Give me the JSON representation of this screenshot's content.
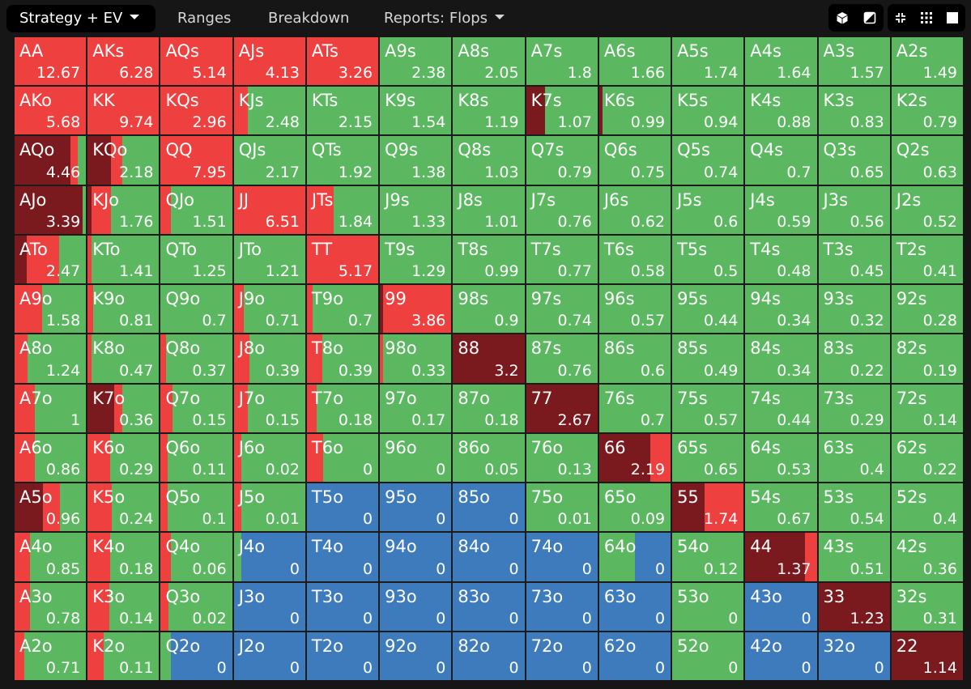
{
  "tabs": [
    {
      "label": "Strategy + EV",
      "active": true,
      "caret": true
    },
    {
      "label": "Ranges",
      "active": false,
      "caret": false
    },
    {
      "label": "Breakdown",
      "active": false,
      "caret": false
    },
    {
      "label": "Reports: Flops",
      "active": false,
      "caret": true
    }
  ],
  "toolbar_icons": [
    "cube-icon",
    "contrast-icon",
    "collapse-icon",
    "grid-dots-icon",
    "square-icon"
  ],
  "colors": {
    "raise": "#ef4040",
    "allin": "#7a1a1e",
    "call": "#5bb760",
    "fold": "#3d7bbc"
  },
  "hands": [
    [
      {
        "h": "AA",
        "v": "12.67",
        "mix": {
          "raise": 1
        }
      },
      {
        "h": "AKs",
        "v": "6.28",
        "mix": {
          "raise": 1
        }
      },
      {
        "h": "AQs",
        "v": "5.14",
        "mix": {
          "raise": 1
        }
      },
      {
        "h": "AJs",
        "v": "4.13",
        "mix": {
          "raise": 1
        }
      },
      {
        "h": "ATs",
        "v": "3.26",
        "mix": {
          "raise": 1
        }
      },
      {
        "h": "A9s",
        "v": "2.38",
        "mix": {
          "call": 1
        }
      },
      {
        "h": "A8s",
        "v": "2.05",
        "mix": {
          "call": 1
        }
      },
      {
        "h": "A7s",
        "v": "1.8",
        "mix": {
          "call": 1
        }
      },
      {
        "h": "A6s",
        "v": "1.66",
        "mix": {
          "call": 1
        }
      },
      {
        "h": "A5s",
        "v": "1.74",
        "mix": {
          "call": 1
        }
      },
      {
        "h": "A4s",
        "v": "1.64",
        "mix": {
          "call": 1
        }
      },
      {
        "h": "A3s",
        "v": "1.57",
        "mix": {
          "call": 1
        }
      },
      {
        "h": "A2s",
        "v": "1.49",
        "mix": {
          "call": 1
        }
      }
    ],
    [
      {
        "h": "AKo",
        "v": "5.68",
        "mix": {
          "raise": 1
        }
      },
      {
        "h": "KK",
        "v": "9.74",
        "mix": {
          "raise": 1
        }
      },
      {
        "h": "KQs",
        "v": "2.96",
        "mix": {
          "raise": 1
        }
      },
      {
        "h": "KJs",
        "v": "2.48",
        "mix": {
          "raise": 0.2,
          "call": 0.8
        }
      },
      {
        "h": "KTs",
        "v": "2.15",
        "mix": {
          "call": 1
        }
      },
      {
        "h": "K9s",
        "v": "1.54",
        "mix": {
          "call": 1
        }
      },
      {
        "h": "K8s",
        "v": "1.19",
        "mix": {
          "call": 1
        }
      },
      {
        "h": "K7s",
        "v": "1.07",
        "mix": {
          "allin": 0.27,
          "call": 0.73
        }
      },
      {
        "h": "K6s",
        "v": "0.99",
        "mix": {
          "allin": 0.05,
          "call": 0.95
        }
      },
      {
        "h": "K5s",
        "v": "0.94",
        "mix": {
          "call": 1
        }
      },
      {
        "h": "K4s",
        "v": "0.88",
        "mix": {
          "call": 1
        }
      },
      {
        "h": "K3s",
        "v": "0.83",
        "mix": {
          "call": 1
        }
      },
      {
        "h": "K2s",
        "v": "0.79",
        "mix": {
          "call": 1
        }
      }
    ],
    [
      {
        "h": "AQo",
        "v": "4.46",
        "mix": {
          "allin": 0.78,
          "raise": 0.1,
          "call": 0.12
        }
      },
      {
        "h": "KQo",
        "v": "2.18",
        "mix": {
          "allin": 0.33,
          "raise": 0.15,
          "call": 0.52
        }
      },
      {
        "h": "QQ",
        "v": "7.95",
        "mix": {
          "raise": 1
        }
      },
      {
        "h": "QJs",
        "v": "2.17",
        "mix": {
          "call": 1
        }
      },
      {
        "h": "QTs",
        "v": "1.92",
        "mix": {
          "call": 1
        }
      },
      {
        "h": "Q9s",
        "v": "1.38",
        "mix": {
          "call": 1
        }
      },
      {
        "h": "Q8s",
        "v": "1.03",
        "mix": {
          "call": 1
        }
      },
      {
        "h": "Q7s",
        "v": "0.79",
        "mix": {
          "call": 1
        }
      },
      {
        "h": "Q6s",
        "v": "0.75",
        "mix": {
          "call": 1
        }
      },
      {
        "h": "Q5s",
        "v": "0.74",
        "mix": {
          "call": 1
        }
      },
      {
        "h": "Q4s",
        "v": "0.7",
        "mix": {
          "call": 1
        }
      },
      {
        "h": "Q3s",
        "v": "0.65",
        "mix": {
          "call": 1
        }
      },
      {
        "h": "Q2s",
        "v": "0.63",
        "mix": {
          "call": 1
        }
      }
    ],
    [
      {
        "h": "AJo",
        "v": "3.39",
        "mix": {
          "allin": 0.95,
          "call": 0.05
        }
      },
      {
        "h": "KJo",
        "v": "1.76",
        "mix": {
          "allin": 0.05,
          "raise": 0.28,
          "call": 0.67
        }
      },
      {
        "h": "QJo",
        "v": "1.51",
        "mix": {
          "raise": 0.14,
          "call": 0.86
        }
      },
      {
        "h": "JJ",
        "v": "6.51",
        "mix": {
          "raise": 1
        }
      },
      {
        "h": "JTs",
        "v": "1.84",
        "mix": {
          "raise": 0.38,
          "call": 0.62
        }
      },
      {
        "h": "J9s",
        "v": "1.33",
        "mix": {
          "call": 1
        }
      },
      {
        "h": "J8s",
        "v": "1.01",
        "mix": {
          "call": 1
        }
      },
      {
        "h": "J7s",
        "v": "0.76",
        "mix": {
          "call": 1
        }
      },
      {
        "h": "J6s",
        "v": "0.62",
        "mix": {
          "call": 1
        }
      },
      {
        "h": "J5s",
        "v": "0.6",
        "mix": {
          "call": 1
        }
      },
      {
        "h": "J4s",
        "v": "0.59",
        "mix": {
          "call": 1
        }
      },
      {
        "h": "J3s",
        "v": "0.56",
        "mix": {
          "call": 1
        }
      },
      {
        "h": "J2s",
        "v": "0.52",
        "mix": {
          "call": 1
        }
      }
    ],
    [
      {
        "h": "ATo",
        "v": "2.47",
        "mix": {
          "allin": 0.17,
          "raise": 0.45,
          "call": 0.38
        }
      },
      {
        "h": "KTo",
        "v": "1.41",
        "mix": {
          "raise": 0.05,
          "call": 0.95
        }
      },
      {
        "h": "QTo",
        "v": "1.25",
        "mix": {
          "call": 1
        }
      },
      {
        "h": "JTo",
        "v": "1.21",
        "mix": {
          "call": 1
        }
      },
      {
        "h": "TT",
        "v": "5.17",
        "mix": {
          "raise": 1
        }
      },
      {
        "h": "T9s",
        "v": "1.29",
        "mix": {
          "call": 1
        }
      },
      {
        "h": "T8s",
        "v": "0.99",
        "mix": {
          "call": 1
        }
      },
      {
        "h": "T7s",
        "v": "0.77",
        "mix": {
          "call": 1
        }
      },
      {
        "h": "T6s",
        "v": "0.58",
        "mix": {
          "call": 1
        }
      },
      {
        "h": "T5s",
        "v": "0.5",
        "mix": {
          "call": 1
        }
      },
      {
        "h": "T4s",
        "v": "0.48",
        "mix": {
          "call": 1
        }
      },
      {
        "h": "T3s",
        "v": "0.45",
        "mix": {
          "call": 1
        }
      },
      {
        "h": "T2s",
        "v": "0.41",
        "mix": {
          "call": 1
        }
      }
    ],
    [
      {
        "h": "A9o",
        "v": "1.58",
        "mix": {
          "raise": 0.38,
          "call": 0.62
        }
      },
      {
        "h": "K9o",
        "v": "0.81",
        "mix": {
          "raise": 0.08,
          "call": 0.92
        }
      },
      {
        "h": "Q9o",
        "v": "0.7",
        "mix": {
          "call": 1
        }
      },
      {
        "h": "J9o",
        "v": "0.71",
        "mix": {
          "raise": 0.14,
          "call": 0.86
        }
      },
      {
        "h": "T9o",
        "v": "0.7",
        "mix": {
          "raise": 0.08,
          "call": 0.92
        }
      },
      {
        "h": "99",
        "v": "3.86",
        "mix": {
          "allin": 0.04,
          "raise": 0.96
        }
      },
      {
        "h": "98s",
        "v": "0.9",
        "mix": {
          "call": 1
        }
      },
      {
        "h": "97s",
        "v": "0.74",
        "mix": {
          "call": 1
        }
      },
      {
        "h": "96s",
        "v": "0.57",
        "mix": {
          "call": 1
        }
      },
      {
        "h": "95s",
        "v": "0.44",
        "mix": {
          "call": 1
        }
      },
      {
        "h": "94s",
        "v": "0.34",
        "mix": {
          "call": 1
        }
      },
      {
        "h": "93s",
        "v": "0.32",
        "mix": {
          "call": 1
        }
      },
      {
        "h": "92s",
        "v": "0.28",
        "mix": {
          "call": 1
        }
      }
    ],
    [
      {
        "h": "A8o",
        "v": "1.24",
        "mix": {
          "raise": 0.18,
          "call": 0.82
        }
      },
      {
        "h": "K8o",
        "v": "0.47",
        "mix": {
          "raise": 0.05,
          "call": 0.95
        }
      },
      {
        "h": "Q8o",
        "v": "0.37",
        "mix": {
          "raise": 0.07,
          "call": 0.93
        }
      },
      {
        "h": "J8o",
        "v": "0.39",
        "mix": {
          "raise": 0.22,
          "call": 0.78
        }
      },
      {
        "h": "T8o",
        "v": "0.39",
        "mix": {
          "raise": 0.22,
          "call": 0.78
        }
      },
      {
        "h": "98o",
        "v": "0.33",
        "mix": {
          "raise": 0.04,
          "call": 0.96
        }
      },
      {
        "h": "88",
        "v": "3.2",
        "mix": {
          "allin": 1
        }
      },
      {
        "h": "87s",
        "v": "0.76",
        "mix": {
          "call": 1
        }
      },
      {
        "h": "86s",
        "v": "0.6",
        "mix": {
          "call": 1
        }
      },
      {
        "h": "85s",
        "v": "0.49",
        "mix": {
          "call": 1
        }
      },
      {
        "h": "84s",
        "v": "0.34",
        "mix": {
          "call": 1
        }
      },
      {
        "h": "83s",
        "v": "0.22",
        "mix": {
          "call": 1
        }
      },
      {
        "h": "82s",
        "v": "0.19",
        "mix": {
          "call": 1
        }
      }
    ],
    [
      {
        "h": "A7o",
        "v": "1",
        "mix": {
          "raise": 0.28,
          "call": 0.72
        }
      },
      {
        "h": "K7o",
        "v": "0.36",
        "mix": {
          "allin": 0.37,
          "raise": 0.12,
          "call": 0.51
        }
      },
      {
        "h": "Q7o",
        "v": "0.15",
        "mix": {
          "raise": 0.17,
          "call": 0.83
        }
      },
      {
        "h": "J7o",
        "v": "0.15",
        "mix": {
          "raise": 0.2,
          "call": 0.8
        }
      },
      {
        "h": "T7o",
        "v": "0.18",
        "mix": {
          "raise": 0.14,
          "call": 0.86
        }
      },
      {
        "h": "97o",
        "v": "0.17",
        "mix": {
          "call": 1
        }
      },
      {
        "h": "87o",
        "v": "0.18",
        "mix": {
          "call": 1
        }
      },
      {
        "h": "77",
        "v": "2.67",
        "mix": {
          "allin": 1
        }
      },
      {
        "h": "76s",
        "v": "0.7",
        "mix": {
          "call": 1
        }
      },
      {
        "h": "75s",
        "v": "0.57",
        "mix": {
          "call": 1
        }
      },
      {
        "h": "74s",
        "v": "0.44",
        "mix": {
          "call": 1
        }
      },
      {
        "h": "73s",
        "v": "0.29",
        "mix": {
          "call": 1
        }
      },
      {
        "h": "72s",
        "v": "0.14",
        "mix": {
          "call": 1
        }
      }
    ],
    [
      {
        "h": "A6o",
        "v": "0.86",
        "mix": {
          "raise": 0.28,
          "call": 0.72
        }
      },
      {
        "h": "K6o",
        "v": "0.29",
        "mix": {
          "raise": 0.31,
          "call": 0.69
        }
      },
      {
        "h": "Q6o",
        "v": "0.11",
        "mix": {
          "raise": 0.1,
          "call": 0.9
        }
      },
      {
        "h": "J6o",
        "v": "0.02",
        "mix": {
          "raise": 0.1,
          "call": 0.9
        }
      },
      {
        "h": "T6o",
        "v": "0",
        "mix": {
          "raise": 0.23,
          "call": 0.77
        }
      },
      {
        "h": "96o",
        "v": "0",
        "mix": {
          "call": 1
        }
      },
      {
        "h": "86o",
        "v": "0.05",
        "mix": {
          "call": 1
        }
      },
      {
        "h": "76o",
        "v": "0.13",
        "mix": {
          "call": 1
        }
      },
      {
        "h": "66",
        "v": "2.19",
        "mix": {
          "allin": 0.72,
          "raise": 0.28
        }
      },
      {
        "h": "65s",
        "v": "0.65",
        "mix": {
          "call": 1
        }
      },
      {
        "h": "64s",
        "v": "0.53",
        "mix": {
          "call": 1
        }
      },
      {
        "h": "63s",
        "v": "0.4",
        "mix": {
          "call": 1
        }
      },
      {
        "h": "62s",
        "v": "0.22",
        "mix": {
          "call": 1
        }
      }
    ],
    [
      {
        "h": "A5o",
        "v": "0.96",
        "mix": {
          "allin": 0.4,
          "raise": 0.23,
          "call": 0.37
        }
      },
      {
        "h": "K5o",
        "v": "0.24",
        "mix": {
          "raise": 0.34,
          "call": 0.66
        }
      },
      {
        "h": "Q5o",
        "v": "0.1",
        "mix": {
          "raise": 0.1,
          "call": 0.9
        }
      },
      {
        "h": "J5o",
        "v": "0.01",
        "mix": {
          "raise": 0.1,
          "call": 0.9
        }
      },
      {
        "h": "T5o",
        "v": "0",
        "mix": {
          "fold": 1
        }
      },
      {
        "h": "95o",
        "v": "0",
        "mix": {
          "fold": 1
        }
      },
      {
        "h": "85o",
        "v": "0",
        "mix": {
          "fold": 1
        }
      },
      {
        "h": "75o",
        "v": "0.01",
        "mix": {
          "call": 1
        }
      },
      {
        "h": "65o",
        "v": "0.09",
        "mix": {
          "call": 1
        }
      },
      {
        "h": "55",
        "v": "1.74",
        "mix": {
          "allin": 0.45,
          "raise": 0.55
        }
      },
      {
        "h": "54s",
        "v": "0.67",
        "mix": {
          "call": 1
        }
      },
      {
        "h": "53s",
        "v": "0.54",
        "mix": {
          "call": 1
        }
      },
      {
        "h": "52s",
        "v": "0.4",
        "mix": {
          "call": 1
        }
      }
    ],
    [
      {
        "h": "A4o",
        "v": "0.85",
        "mix": {
          "raise": 0.22,
          "call": 0.78
        }
      },
      {
        "h": "K4o",
        "v": "0.18",
        "mix": {
          "raise": 0.31,
          "call": 0.69
        }
      },
      {
        "h": "Q4o",
        "v": "0.06",
        "mix": {
          "raise": 0.14,
          "call": 0.86
        }
      },
      {
        "h": "J4o",
        "v": "0",
        "mix": {
          "call": 0.1,
          "fold": 0.9
        }
      },
      {
        "h": "T4o",
        "v": "0",
        "mix": {
          "fold": 1
        }
      },
      {
        "h": "94o",
        "v": "0",
        "mix": {
          "fold": 1
        }
      },
      {
        "h": "84o",
        "v": "0",
        "mix": {
          "fold": 1
        }
      },
      {
        "h": "74o",
        "v": "0",
        "mix": {
          "fold": 1
        }
      },
      {
        "h": "64o",
        "v": "0",
        "mix": {
          "call": 0.5,
          "fold": 0.5
        }
      },
      {
        "h": "54o",
        "v": "0.12",
        "mix": {
          "call": 1
        }
      },
      {
        "h": "44",
        "v": "1.37",
        "mix": {
          "allin": 0.83,
          "raise": 0.17
        }
      },
      {
        "h": "43s",
        "v": "0.51",
        "mix": {
          "call": 1
        }
      },
      {
        "h": "42s",
        "v": "0.36",
        "mix": {
          "call": 1
        }
      }
    ],
    [
      {
        "h": "A3o",
        "v": "0.78",
        "mix": {
          "raise": 0.22,
          "call": 0.78
        }
      },
      {
        "h": "K3o",
        "v": "0.14",
        "mix": {
          "raise": 0.3,
          "call": 0.7
        }
      },
      {
        "h": "Q3o",
        "v": "0.02",
        "mix": {
          "raise": 0.11,
          "call": 0.89
        }
      },
      {
        "h": "J3o",
        "v": "0",
        "mix": {
          "fold": 1
        }
      },
      {
        "h": "T3o",
        "v": "0",
        "mix": {
          "fold": 1
        }
      },
      {
        "h": "93o",
        "v": "0",
        "mix": {
          "fold": 1
        }
      },
      {
        "h": "83o",
        "v": "0",
        "mix": {
          "fold": 1
        }
      },
      {
        "h": "73o",
        "v": "0",
        "mix": {
          "fold": 1
        }
      },
      {
        "h": "63o",
        "v": "0",
        "mix": {
          "fold": 1
        }
      },
      {
        "h": "53o",
        "v": "0",
        "mix": {
          "call": 1
        }
      },
      {
        "h": "43o",
        "v": "0",
        "mix": {
          "fold": 1
        }
      },
      {
        "h": "33",
        "v": "1.23",
        "mix": {
          "allin": 1
        }
      },
      {
        "h": "32s",
        "v": "0.31",
        "mix": {
          "call": 1
        }
      }
    ],
    [
      {
        "h": "A2o",
        "v": "0.71",
        "mix": {
          "raise": 0.14,
          "call": 0.86
        }
      },
      {
        "h": "K2o",
        "v": "0.11",
        "mix": {
          "raise": 0.22,
          "call": 0.78
        }
      },
      {
        "h": "Q2o",
        "v": "0",
        "mix": {
          "call": 0.14,
          "fold": 0.86
        }
      },
      {
        "h": "J2o",
        "v": "0",
        "mix": {
          "fold": 1
        }
      },
      {
        "h": "T2o",
        "v": "0",
        "mix": {
          "fold": 1
        }
      },
      {
        "h": "92o",
        "v": "0",
        "mix": {
          "fold": 1
        }
      },
      {
        "h": "82o",
        "v": "0",
        "mix": {
          "fold": 1
        }
      },
      {
        "h": "72o",
        "v": "0",
        "mix": {
          "fold": 1
        }
      },
      {
        "h": "62o",
        "v": "0",
        "mix": {
          "fold": 1
        }
      },
      {
        "h": "52o",
        "v": "0",
        "mix": {
          "call": 1
        }
      },
      {
        "h": "42o",
        "v": "0",
        "mix": {
          "fold": 1
        }
      },
      {
        "h": "32o",
        "v": "0",
        "mix": {
          "fold": 1
        }
      },
      {
        "h": "22",
        "v": "1.14",
        "mix": {
          "allin": 1
        }
      }
    ]
  ]
}
